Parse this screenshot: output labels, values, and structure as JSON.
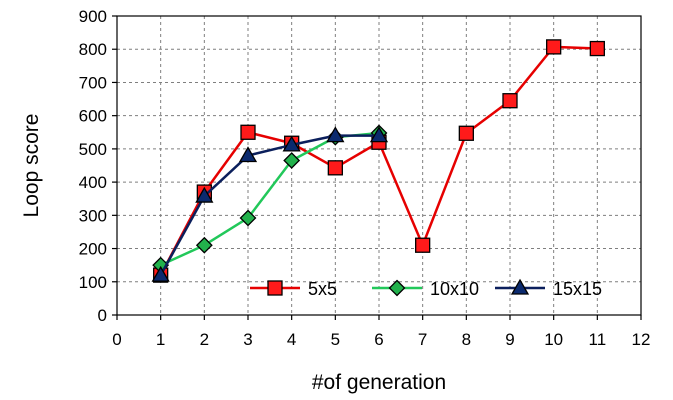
{
  "chart_data": {
    "type": "line",
    "title": "",
    "xlabel": "#of generation",
    "ylabel": "Loop score",
    "xlim": [
      0,
      12
    ],
    "ylim": [
      0,
      900
    ],
    "x_ticks": [
      0,
      1,
      2,
      3,
      4,
      5,
      6,
      7,
      8,
      9,
      10,
      11,
      12
    ],
    "y_ticks": [
      0,
      100,
      200,
      300,
      400,
      500,
      600,
      700,
      800,
      900
    ],
    "grid": true,
    "legend_position": "bottom-right",
    "series": [
      {
        "name": "5x5",
        "color": "#e60000",
        "marker_fill": "#ff1a1a",
        "marker": "square",
        "x": [
          1,
          2,
          3,
          4,
          5,
          6,
          7,
          8,
          9,
          10,
          11
        ],
        "y": [
          120,
          370,
          550,
          517,
          443,
          520,
          210,
          547,
          645,
          807,
          802
        ]
      },
      {
        "name": "10x10",
        "color": "#22c85a",
        "marker_fill": "#22b14c",
        "marker": "diamond",
        "x": [
          1,
          2,
          3,
          4,
          5,
          6
        ],
        "y": [
          150,
          210,
          292,
          465,
          535,
          548
        ]
      },
      {
        "name": "15x15",
        "color": "#0b1f5c",
        "marker_fill": "#0b2a6e",
        "marker": "triangle",
        "x": [
          1,
          2,
          3,
          4,
          5,
          6
        ],
        "y": [
          120,
          358,
          480,
          512,
          540,
          540
        ]
      }
    ]
  }
}
